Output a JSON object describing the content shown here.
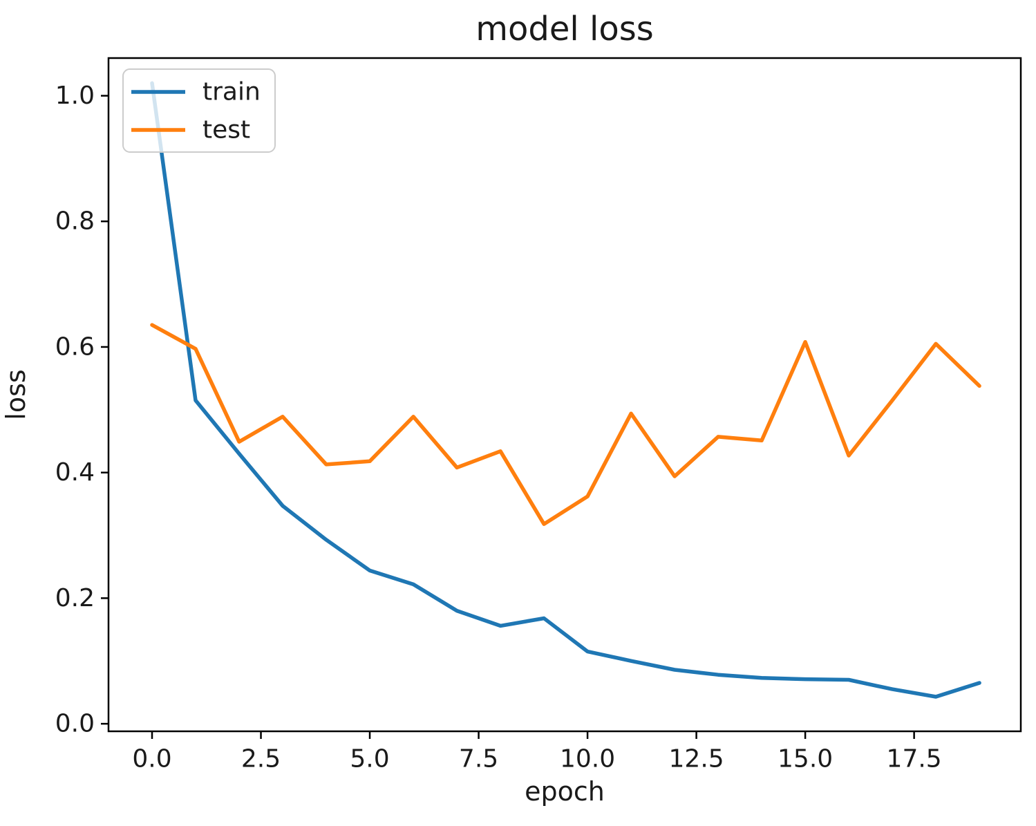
{
  "chart_data": {
    "type": "line",
    "title": "model loss",
    "xlabel": "epoch",
    "ylabel": "loss",
    "grid": false,
    "background": "#ffffff",
    "spine_color": "#000000",
    "text_color": "#1a1a1a",
    "x": [
      0,
      1,
      2,
      3,
      4,
      5,
      6,
      7,
      8,
      9,
      10,
      11,
      12,
      13,
      14,
      15,
      16,
      17,
      18,
      19
    ],
    "series": [
      {
        "name": "train",
        "color": "#1f77b4",
        "values": [
          1.02,
          0.515,
          0.43,
          0.347,
          0.293,
          0.244,
          0.222,
          0.18,
          0.156,
          0.168,
          0.115,
          0.1,
          0.086,
          0.078,
          0.073,
          0.071,
          0.07,
          0.055,
          0.043,
          0.065
        ]
      },
      {
        "name": "test",
        "color": "#ff7f0e",
        "values": [
          0.635,
          0.597,
          0.449,
          0.489,
          0.413,
          0.418,
          0.489,
          0.408,
          0.434,
          0.318,
          0.362,
          0.494,
          0.394,
          0.457,
          0.451,
          0.608,
          0.427,
          0.515,
          0.605,
          0.538
        ]
      }
    ],
    "x_axis": {
      "ticks": [
        0,
        2.5,
        5,
        7.5,
        10,
        12.5,
        15,
        17.5
      ],
      "tick_labels": [
        "0.0",
        "2.5",
        "5.0",
        "7.5",
        "10.0",
        "12.5",
        "15.0",
        "17.5"
      ]
    },
    "y_axis": {
      "ticks": [
        0,
        0.2,
        0.4,
        0.6,
        0.8,
        1.0
      ],
      "tick_labels": [
        "0.0",
        "0.2",
        "0.4",
        "0.6",
        "0.8",
        "1.0"
      ]
    },
    "xlim": [
      -1.0,
      19.95
    ],
    "ylim": [
      -0.012,
      1.06
    ],
    "legend": {
      "position": "upper left",
      "entries": [
        "train",
        "test"
      ]
    }
  }
}
